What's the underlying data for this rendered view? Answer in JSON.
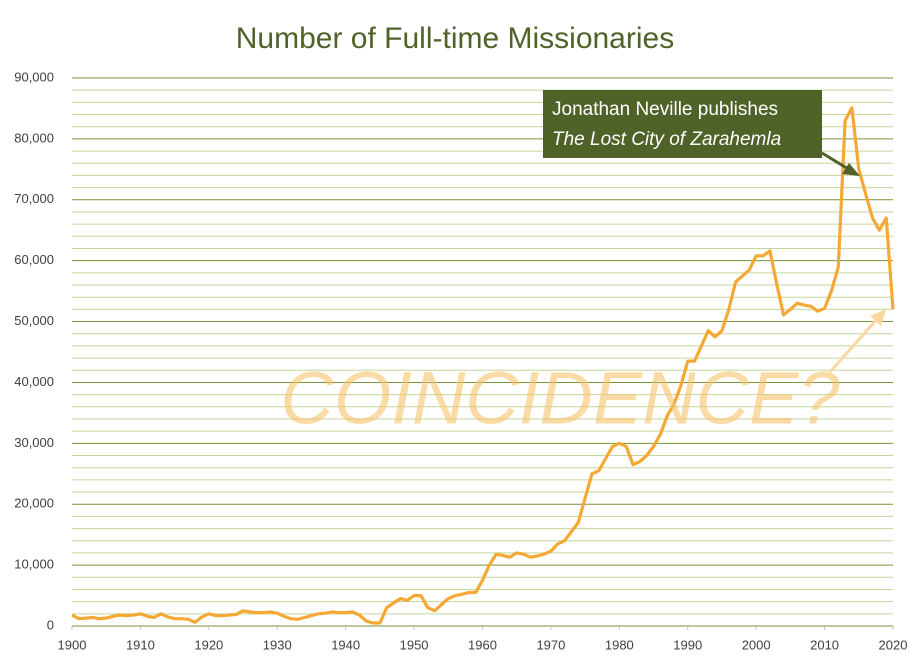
{
  "chart_data": {
    "type": "line",
    "title": "Number of Full-time Missionaries",
    "annotations": [
      "Jonathan Neville publishes",
      "The Lost City of Zarahemla",
      "COINCIDENCE?"
    ],
    "x": [
      1900,
      1901,
      1902,
      1903,
      1904,
      1905,
      1906,
      1907,
      1908,
      1909,
      1910,
      1911,
      1912,
      1913,
      1914,
      1915,
      1916,
      1917,
      1918,
      1919,
      1920,
      1921,
      1922,
      1923,
      1924,
      1925,
      1926,
      1927,
      1928,
      1929,
      1930,
      1931,
      1932,
      1933,
      1934,
      1935,
      1936,
      1937,
      1938,
      1939,
      1940,
      1941,
      1942,
      1943,
      1944,
      1945,
      1946,
      1947,
      1948,
      1949,
      1950,
      1951,
      1952,
      1953,
      1954,
      1955,
      1956,
      1957,
      1958,
      1959,
      1960,
      1961,
      1962,
      1963,
      1964,
      1965,
      1966,
      1967,
      1968,
      1969,
      1970,
      1971,
      1972,
      1973,
      1974,
      1975,
      1976,
      1977,
      1978,
      1979,
      1980,
      1981,
      1982,
      1983,
      1984,
      1985,
      1986,
      1987,
      1988,
      1989,
      1990,
      1991,
      1992,
      1993,
      1994,
      1995,
      1996,
      1997,
      1998,
      1999,
      2000,
      2001,
      2002,
      2003,
      2004,
      2005,
      2006,
      2007,
      2008,
      2009,
      2010,
      2011,
      2012,
      2013,
      2014,
      2015,
      2016,
      2017,
      2018,
      2019,
      2020
    ],
    "series": [
      {
        "name": "Missionaries",
        "color": "#f5a833",
        "values": [
          1800,
          1200,
          1300,
          1400,
          1200,
          1300,
          1600,
          1800,
          1700,
          1800,
          2000,
          1600,
          1400,
          2000,
          1500,
          1200,
          1200,
          1100,
          600,
          1500,
          2000,
          1700,
          1700,
          1800,
          1900,
          2500,
          2300,
          2200,
          2200,
          2300,
          2100,
          1600,
          1200,
          1100,
          1400,
          1700,
          2000,
          2100,
          2300,
          2200,
          2200,
          2300,
          1800,
          800,
          500,
          500,
          3000,
          3800,
          4500,
          4200,
          5000,
          5000,
          3000,
          2500,
          3500,
          4500,
          5000,
          5200,
          5500,
          5500,
          7500,
          10000,
          11800,
          11600,
          11300,
          12000,
          11800,
          11300,
          11500,
          11800,
          12300,
          13500,
          14000,
          15500,
          17000,
          21000,
          25000,
          25500,
          27500,
          29500,
          30000,
          29500,
          26500,
          27000,
          28000,
          29500,
          31500,
          34500,
          36500,
          39500,
          43500,
          43500,
          46000,
          48500,
          47500,
          48500,
          52000,
          56500,
          57500,
          58500,
          60800,
          60800,
          61600,
          56200,
          51100,
          52000,
          53000,
          52700,
          52500,
          51700,
          52200,
          55000,
          59000,
          83000,
          85100,
          75000,
          71000,
          67000,
          65000,
          67000,
          52000
        ]
      }
    ],
    "xlim": [
      1900,
      2020
    ],
    "xticks": [
      1900,
      1910,
      1920,
      1930,
      1940,
      1950,
      1960,
      1970,
      1980,
      1990,
      2000,
      2010,
      2020
    ],
    "ylim": [
      0,
      90000
    ],
    "yticks": [
      0,
      {
        "value": 10000,
        "label": "10,000"
      },
      {
        "value": 20000,
        "label": "20,000"
      },
      {
        "value": 30000,
        "label": "30,000"
      },
      {
        "value": 40000,
        "label": "40,000"
      },
      {
        "value": 50000,
        "label": "50,000"
      },
      {
        "value": 60000,
        "label": "60,000"
      },
      {
        "value": 70000,
        "label": "70,000"
      },
      {
        "value": 80000,
        "label": "80,000"
      },
      {
        "value": 90000,
        "label": "90,000"
      }
    ],
    "minor_yticks": [
      2000,
      4000,
      6000,
      8000,
      12000,
      14000,
      16000,
      18000,
      22000,
      24000,
      26000,
      28000,
      32000,
      34000,
      36000,
      38000,
      42000,
      44000,
      46000,
      48000,
      52000,
      54000,
      56000,
      58000,
      62000,
      64000,
      66000,
      68000,
      72000,
      74000,
      76000,
      78000,
      82000,
      84000,
      86000,
      88000
    ],
    "grid": true,
    "grid_color": "#77933c",
    "minor_grid_color": "#c3d69b"
  }
}
